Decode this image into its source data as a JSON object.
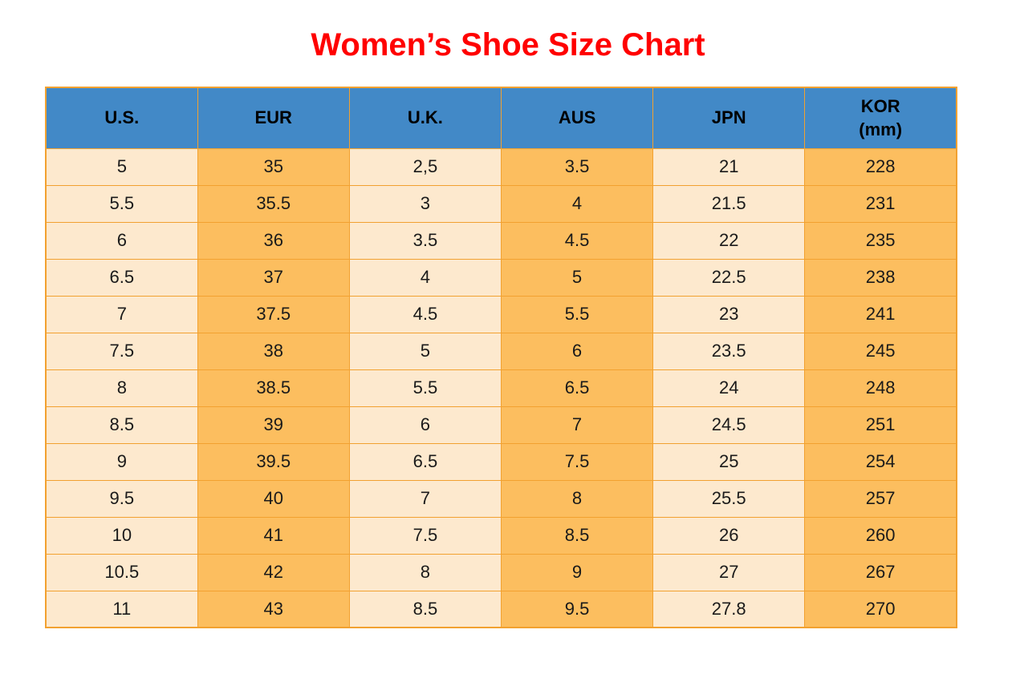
{
  "title": "Women’s Shoe Size Chart",
  "colors": {
    "title_red": "#ff0000",
    "header_blue": "#4289c7",
    "col_light": "#fde9ce",
    "col_dark": "#fcbe5f",
    "border_orange": "#f2a130",
    "cell_text": "#1a1a1a"
  },
  "header_display": {
    "us": "U.S.",
    "eur": "EUR",
    "uk": "U.K.",
    "aus": "AUS",
    "jpn": "JPN",
    "kor_line1": "KOR",
    "kor_line2": "(mm)"
  },
  "chart_data": {
    "type": "table",
    "title": "Women’s Shoe Size Chart",
    "columns": [
      "U.S.",
      "EUR",
      "U.K.",
      "AUS",
      "JPN",
      "KOR (mm)"
    ],
    "rows": [
      [
        "5",
        "35",
        "2,5",
        "3.5",
        "21",
        "228"
      ],
      [
        "5.5",
        "35.5",
        "3",
        "4",
        "21.5",
        "231"
      ],
      [
        "6",
        "36",
        "3.5",
        "4.5",
        "22",
        "235"
      ],
      [
        "6.5",
        "37",
        "4",
        "5",
        "22.5",
        "238"
      ],
      [
        "7",
        "37.5",
        "4.5",
        "5.5",
        "23",
        "241"
      ],
      [
        "7.5",
        "38",
        "5",
        "6",
        "23.5",
        "245"
      ],
      [
        "8",
        "38.5",
        "5.5",
        "6.5",
        "24",
        "248"
      ],
      [
        "8.5",
        "39",
        "6",
        "7",
        "24.5",
        "251"
      ],
      [
        "9",
        "39.5",
        "6.5",
        "7.5",
        "25",
        "254"
      ],
      [
        "9.5",
        "40",
        "7",
        "8",
        "25.5",
        "257"
      ],
      [
        "10",
        "41",
        "7.5",
        "8.5",
        "26",
        "260"
      ],
      [
        "10.5",
        "42",
        "8",
        "9",
        "27",
        "267"
      ],
      [
        "11",
        "43",
        "8.5",
        "9.5",
        "27.8",
        "270"
      ]
    ]
  }
}
